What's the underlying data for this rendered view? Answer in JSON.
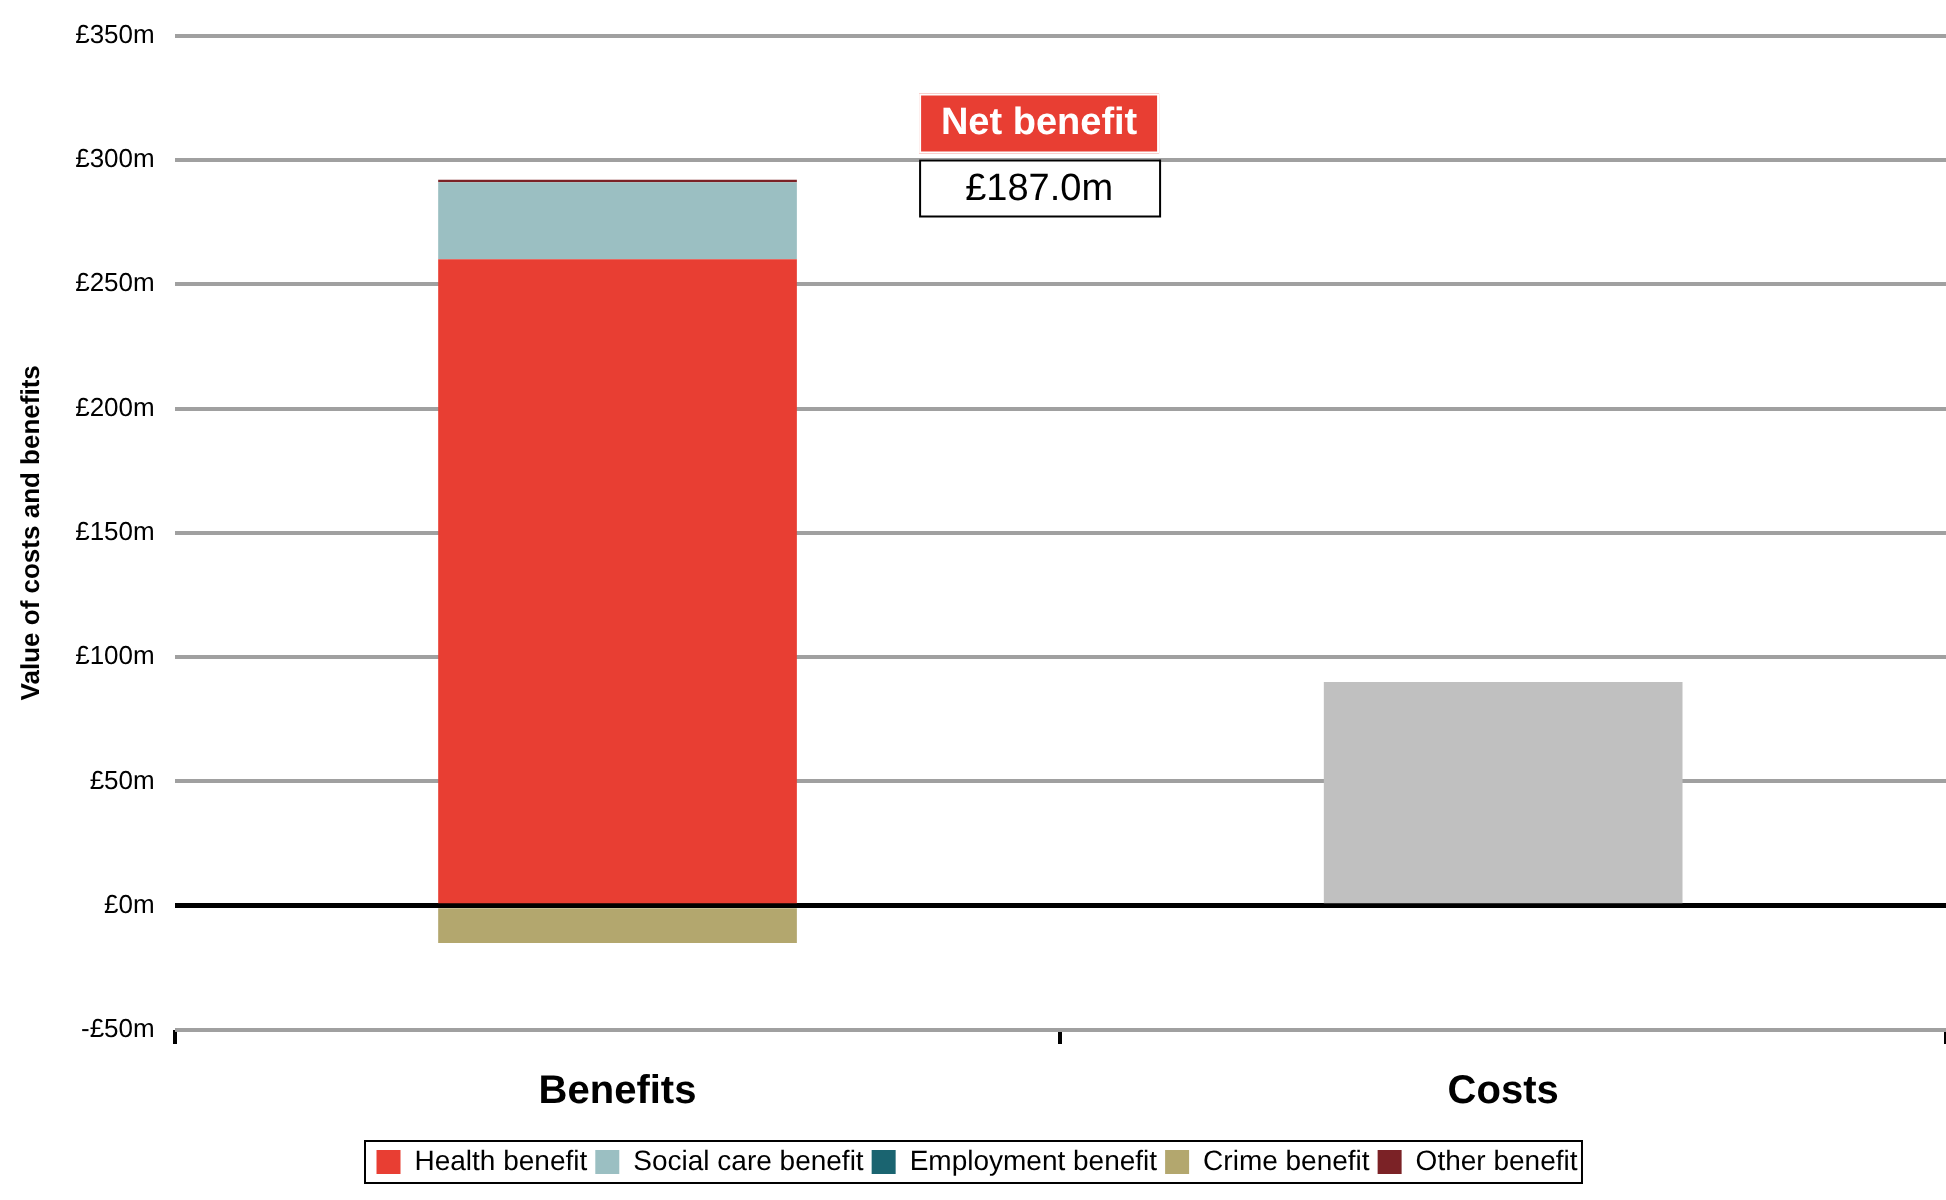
{
  "chart_data": {
    "type": "bar",
    "stacked": true,
    "ylabel": "Value of costs and benefits",
    "categories": [
      "Benefits",
      "Costs"
    ],
    "series": [
      {
        "name": "Health benefit",
        "color": "#e83e33",
        "values": [
          260,
          null
        ]
      },
      {
        "name": "Social care benefit",
        "color": "#9bbfc2",
        "values": [
          31,
          null
        ]
      },
      {
        "name": "Employment benefit",
        "color": "#1a6470",
        "values": [
          0,
          null
        ]
      },
      {
        "name": "Crime benefit",
        "color": "#b3a76e",
        "values": [
          -15,
          null
        ]
      },
      {
        "name": "Other benefit",
        "color": "#7b2226",
        "values": [
          1,
          null
        ]
      },
      {
        "color": "#c0c0c0",
        "values": [
          null,
          90
        ]
      }
    ],
    "ylim": [
      -50,
      350
    ],
    "yticks": [
      {
        "value": -50,
        "label": "-£50m"
      },
      {
        "value": 0,
        "label": "£0m"
      },
      {
        "value": 50,
        "label": "£50m"
      },
      {
        "value": 100,
        "label": "£100m"
      },
      {
        "value": 150,
        "label": "£150m"
      },
      {
        "value": 200,
        "label": "£200m"
      },
      {
        "value": 250,
        "label": "£250m"
      },
      {
        "value": 300,
        "label": "£300m"
      },
      {
        "value": 350,
        "label": "£350m"
      }
    ],
    "grid": "y",
    "legend": "bottom",
    "annotations": [
      "Net benefit",
      "£187.0m"
    ]
  }
}
